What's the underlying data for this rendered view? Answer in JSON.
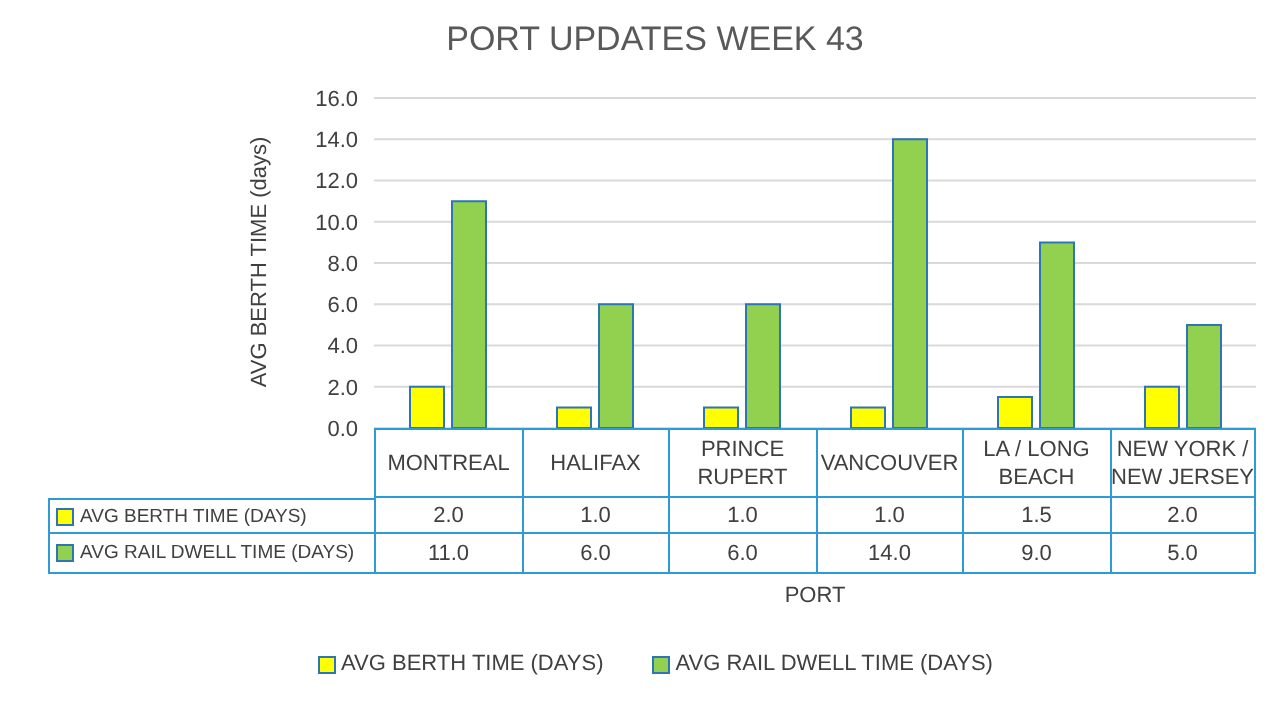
{
  "chart_data": {
    "type": "bar",
    "title": "PORT UPDATES WEEK 43",
    "xlabel": "PORT",
    "ylabel": "AVG BERTH TIME (days)",
    "categories": [
      "MONTREAL",
      "HALIFAX",
      "PRINCE RUPERT",
      "VANCOUVER",
      "LA / LONG BEACH",
      "NEW YORK / NEW JERSEY"
    ],
    "series": [
      {
        "name": "AVG BERTH TIME (DAYS)",
        "color": "#ffff00",
        "values": [
          2,
          1,
          1,
          1,
          1.5,
          2
        ],
        "value_labels": [
          "2.0",
          "1.0",
          "1.0",
          "1.0",
          "1.5",
          "2.0"
        ]
      },
      {
        "name": "AVG RAIL DWELL TIME (DAYS)",
        "color": "#92d050",
        "values": [
          11,
          6,
          6,
          14,
          9,
          5
        ],
        "value_labels": [
          "11.0",
          "6.0",
          "6.0",
          "14.0",
          "9.0",
          "5.0"
        ]
      }
    ],
    "ylim": [
      0,
      16
    ],
    "yticks": [
      {
        "value": 0,
        "label": "0.0"
      },
      {
        "value": 2,
        "label": "2.0"
      },
      {
        "value": 4,
        "label": "4.0"
      },
      {
        "value": 6,
        "label": "6.0"
      },
      {
        "value": 8,
        "label": "8.0"
      },
      {
        "value": 10,
        "label": "10.0"
      },
      {
        "value": 12,
        "label": "12.0"
      },
      {
        "value": 14,
        "label": "14.0"
      },
      {
        "value": 16,
        "label": "16.0"
      }
    ],
    "grid": "y",
    "legend": "bottom"
  }
}
